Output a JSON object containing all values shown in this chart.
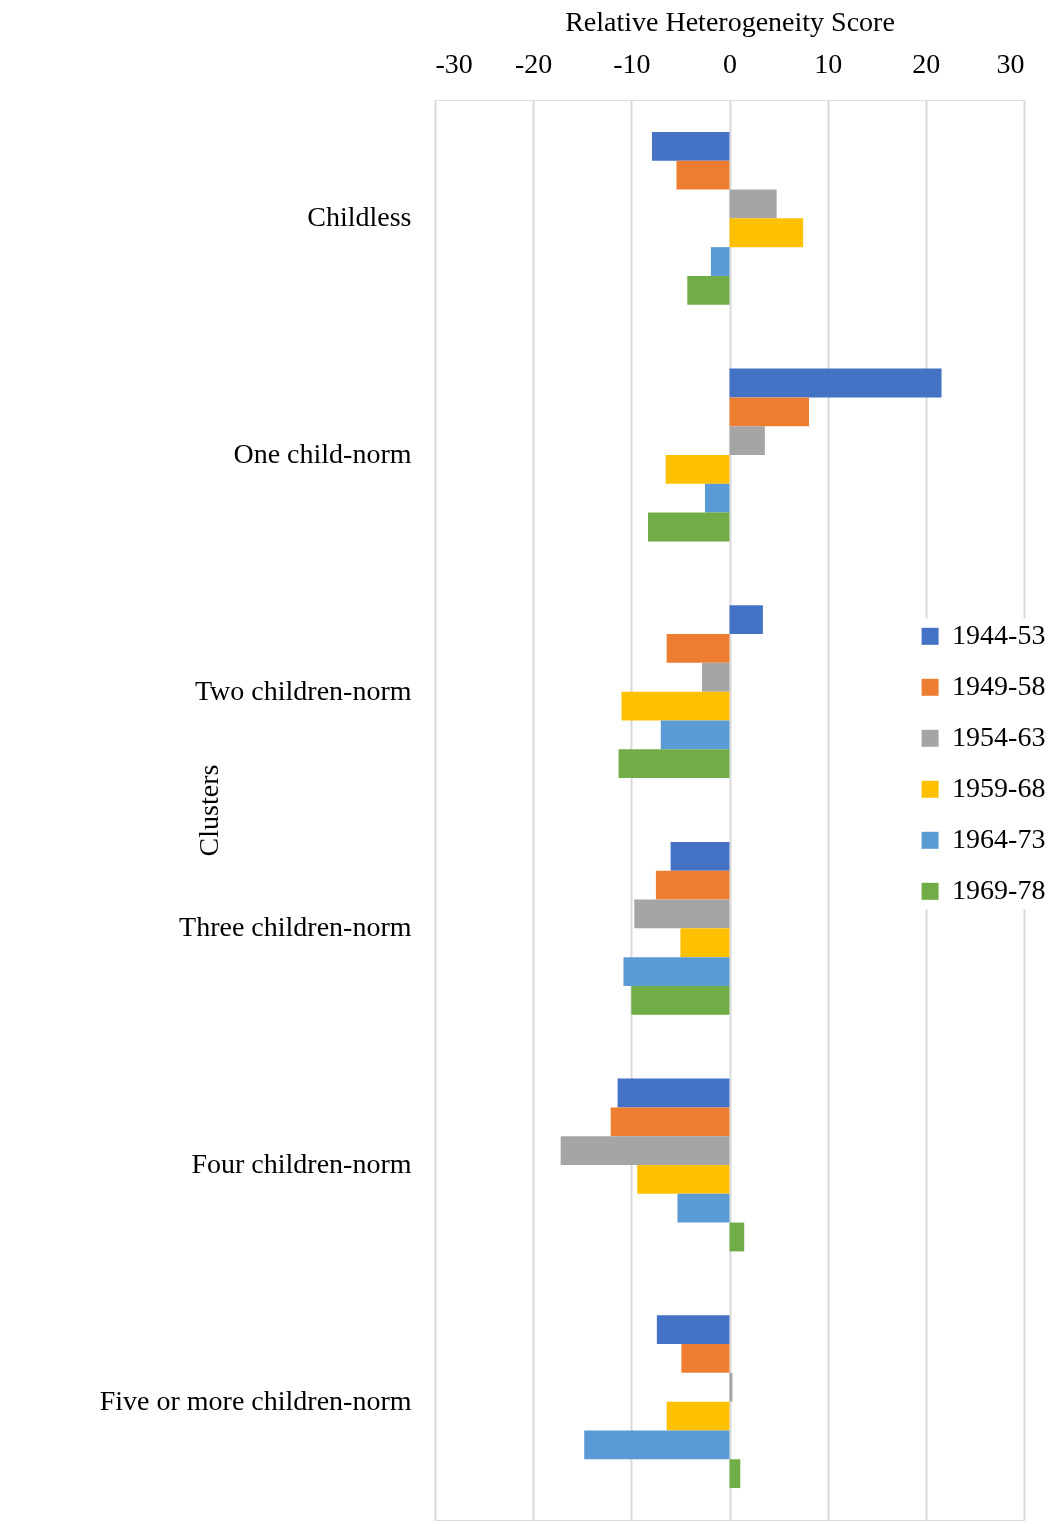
{
  "chart_data": {
    "type": "bar",
    "orientation": "horizontal",
    "xlabel": "Relative Heterogeneity Score",
    "ylabel": "Clusters",
    "categories": [
      "Childless",
      "One child-norm",
      "Two children-norm",
      "Three children-norm",
      "Four children-norm",
      "Five or more children-norm"
    ],
    "series": [
      {
        "name": "1944-53",
        "color": "#4472c4",
        "values": [
          -7.9,
          21.6,
          3.4,
          -6.0,
          -11.4,
          -7.4
        ]
      },
      {
        "name": "1949-58",
        "color": "#ed7d31",
        "values": [
          -5.4,
          8.1,
          -6.4,
          -7.5,
          -12.1,
          -4.9
        ]
      },
      {
        "name": "1954-63",
        "color": "#a5a5a5",
        "values": [
          4.8,
          3.6,
          -2.8,
          -9.7,
          -17.2,
          0.3
        ]
      },
      {
        "name": "1959-68",
        "color": "#ffc000",
        "values": [
          7.5,
          -6.5,
          -11.0,
          -5.0,
          -9.4,
          -6.4
        ]
      },
      {
        "name": "1964-73",
        "color": "#5b9bd5",
        "values": [
          -1.9,
          -2.5,
          -7.0,
          -10.8,
          -5.3,
          -14.8
        ]
      },
      {
        "name": "1969-78",
        "color": "#70ad47",
        "values": [
          -4.3,
          -8.3,
          -11.3,
          -10.0,
          1.5,
          1.1
        ]
      }
    ],
    "xlim": [
      -30,
      30
    ],
    "xticks": [
      -30,
      -20,
      -10,
      0,
      10,
      20,
      30
    ],
    "grid": "x",
    "legend": "right"
  }
}
